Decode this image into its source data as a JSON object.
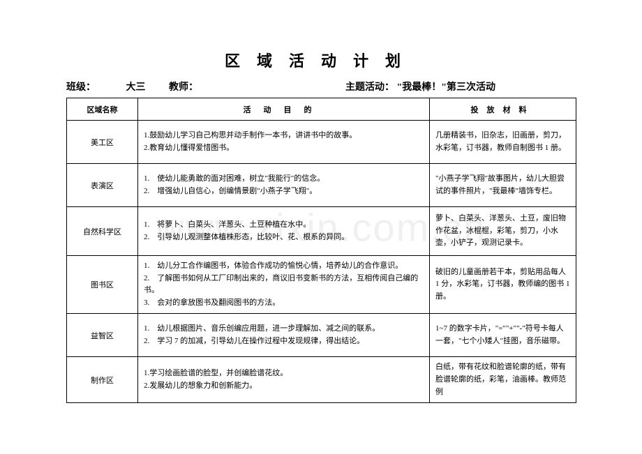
{
  "watermark": "www.zixin.com.cn",
  "title": "区域活动计划",
  "meta": {
    "class_label": "班级：",
    "class_value": "大三",
    "teacher_label": "教师：",
    "theme_label": "主题活动：",
    "theme_value": "\"我最棒！\"第三次活动"
  },
  "headers": {
    "name": "区域名称",
    "goal": "活动目的",
    "mat": "投放材料"
  },
  "rows": [
    {
      "name": "美工区",
      "goal": "1.鼓励幼儿学习自己构思并动手制作一本书，讲讲书中的故事。\n2.教育幼儿懂得爱惜图书。",
      "mat": "几册精装书，旧杂志，旧画册，剪刀，水彩笔，订书器，教师自制图书 1 册。"
    },
    {
      "name": "表演区",
      "goal": "1.　使幼儿能勇敢的面对困难，树立\"我能行\"的信念。\n2.　增强幼儿自信心，创编情景剧\"小燕子学飞翔\"。",
      "mat": "\"小燕子学飞翔\"故事图片，幼儿大胆尝试的事件照片，\"我最棒\"墙饰专栏。"
    },
    {
      "name": "自然科学区",
      "goal": "1.　将萝卜、白菜头、洋葱头、土豆种植在水中。\n2.　引导幼儿观测整体植株形态，比较叶、花、根系的异同。",
      "mat": "萝卜、白菜头、洋葱头、土豆，废旧物作花盆，冰棍棍，彩笔，剪刀，小水壶，小铲子，观测记录卡。"
    },
    {
      "name": "图书区",
      "goal": "1.　幼儿分工合作编图书，体验合作成功的愉悦心情，培养幼儿的合作意识。\n2.　了解图书如何从工厂印制出来的，商议旧书变新书的方法，互相传阅自己编的书。\n3.　会对的拿放图书及翻阅图书的方法。",
      "mat": "破旧的儿童画册若干本，剪贴用品每人 1 分，水彩笔，订书器，教师编的图书 1 册。"
    },
    {
      "name": "益智区",
      "goal": "1.　幼儿根据图片、音乐创编应用题，进一步理解加、减之间的联系。\n2.　学习 7 的加减，引导幼儿在操作过程中发现规律，得出结论。",
      "mat": "1~7 的数字卡片，\"=\"\"+\"\"-\"符号卡每人一套，\"七个小矮人\"挂图，音乐磁带。"
    },
    {
      "name": "制作区",
      "goal": "1.学习绘画脸谱的脸型，并创编脸谱花纹。\n2.发展幼儿的想象力和创新能力。",
      "mat": "白纸，带有花纹和脸谱轮廓的纸，带有脸谱轮廓的纸，彩笔，油画棒。教师范例"
    }
  ]
}
